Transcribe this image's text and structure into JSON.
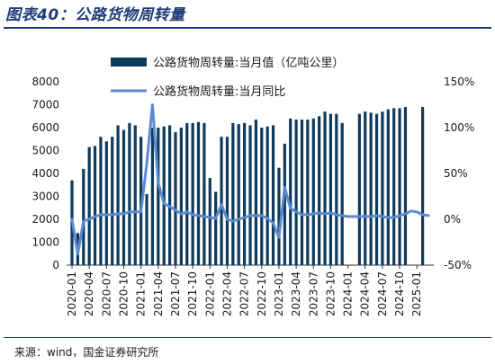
{
  "figure_title": "图表40：公路货物周转量",
  "source_note": "来源：wind，国金证券研究所",
  "colors": {
    "bar": "#0e3a5c",
    "line": "#5b8bd0",
    "title": "#1e3c78"
  },
  "chart_data": {
    "type": "bar",
    "title": "",
    "legend_position": "top",
    "grid": false,
    "y_left": {
      "min": 0,
      "max": 8000,
      "ticks": [
        "0",
        "1000",
        "2000",
        "3000",
        "4000",
        "5000",
        "6000",
        "7000",
        "8000"
      ]
    },
    "y_right": {
      "min": -50,
      "max": 150,
      "ticks": [
        "-50%",
        "0%",
        "50%",
        "100%",
        "150%"
      ]
    },
    "x_tick_labels": [
      "2020-01",
      "2020-04",
      "2020-07",
      "2020-10",
      "2021-01",
      "2021-04",
      "2021-07",
      "2021-10",
      "2022-01",
      "2022-04",
      "2022-07",
      "2022-10",
      "2023-01",
      "2023-04",
      "2023-07",
      "2023-10",
      "2024-01",
      "2024-04",
      "2024-07",
      "2024-10",
      "2025-01"
    ],
    "categories": [
      "2020-01",
      "2020-02",
      "2020-03",
      "2020-04",
      "2020-05",
      "2020-06",
      "2020-07",
      "2020-08",
      "2020-09",
      "2020-10",
      "2020-11",
      "2020-12",
      "2021-01",
      "2021-02",
      "2021-03",
      "2021-04",
      "2021-05",
      "2021-06",
      "2021-07",
      "2021-08",
      "2021-09",
      "2021-10",
      "2021-11",
      "2021-12",
      "2022-01",
      "2022-02",
      "2022-03",
      "2022-04",
      "2022-05",
      "2022-06",
      "2022-07",
      "2022-08",
      "2022-09",
      "2022-10",
      "2022-11",
      "2022-12",
      "2023-01",
      "2023-02",
      "2023-03",
      "2023-04",
      "2023-05",
      "2023-06",
      "2023-07",
      "2023-08",
      "2023-09",
      "2023-10",
      "2023-11",
      "2023-12",
      "2024-01",
      "2024-02",
      "2024-03",
      "2024-04",
      "2024-05",
      "2024-06",
      "2024-07",
      "2024-08",
      "2024-09",
      "2024-10",
      "2024-11",
      "2024-12",
      "2025-01",
      "2025-02",
      "2025-03"
    ],
    "series": [
      {
        "name": "公路货物周转量:当月值（亿吨公里）",
        "type": "bar",
        "axis": "left",
        "values": [
          3700,
          1400,
          4200,
          5150,
          5200,
          5600,
          5400,
          5600,
          6100,
          5900,
          6200,
          6100,
          5600,
          3100,
          6000,
          6000,
          6050,
          6100,
          5800,
          6000,
          6200,
          6200,
          6250,
          6200,
          3800,
          3200,
          5600,
          5600,
          6200,
          6150,
          6200,
          6100,
          6350,
          6000,
          6050,
          6100,
          4250,
          5300,
          6400,
          6350,
          6350,
          6350,
          6400,
          6500,
          6700,
          6600,
          6600,
          6200,
          null,
          null,
          6600,
          6700,
          6650,
          6600,
          6700,
          6800,
          6850,
          6850,
          6900,
          null,
          null,
          6900,
          null
        ]
      },
      {
        "name": "公路货物周转量:当月同比",
        "type": "line",
        "axis": "right",
        "values": [
          0,
          -38,
          -2,
          0,
          3,
          5,
          5,
          5,
          6,
          6,
          8,
          8,
          8,
          60,
          125,
          40,
          17,
          14,
          10,
          6,
          8,
          5,
          4,
          3,
          2,
          1,
          16,
          0,
          -2,
          0,
          2,
          4,
          4,
          4,
          1,
          -4,
          -20,
          35,
          12,
          8,
          5,
          5,
          6,
          7,
          6,
          7,
          5,
          4,
          3,
          3,
          3,
          3,
          3,
          4,
          3,
          2,
          2,
          4,
          6,
          9,
          8,
          5,
          4
        ]
      }
    ]
  }
}
